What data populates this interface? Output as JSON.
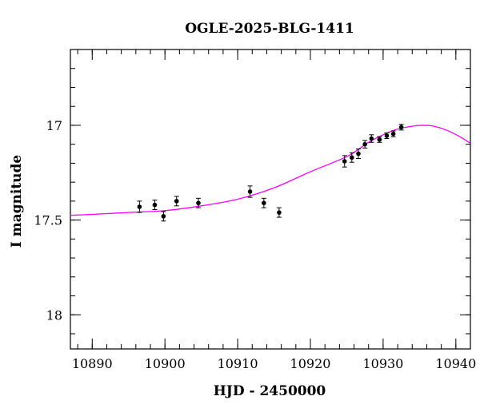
{
  "chart_data": {
    "type": "scatter",
    "title": "OGLE-2025-BLG-1411",
    "xlabel": "HJD - 2450000",
    "ylabel": "I magnitude",
    "xlim": [
      10887,
      10942
    ],
    "ylim": [
      18.18,
      16.6
    ],
    "y_inverted": true,
    "grid": false,
    "x_ticks": [
      10890,
      10900,
      10910,
      10920,
      10930,
      10940
    ],
    "y_ticks": [
      17,
      17.5,
      18
    ],
    "x_minor_step": 2,
    "y_minor_step": 0.1,
    "series": [
      {
        "kind": "points",
        "color": "#000000",
        "points": [
          {
            "x": 10896.5,
            "y": 17.43,
            "err": 0.03
          },
          {
            "x": 10898.6,
            "y": 17.42,
            "err": 0.025
          },
          {
            "x": 10899.8,
            "y": 17.48,
            "err": 0.025
          },
          {
            "x": 10901.6,
            "y": 17.4,
            "err": 0.025
          },
          {
            "x": 10904.6,
            "y": 17.41,
            "err": 0.025
          },
          {
            "x": 10911.7,
            "y": 17.35,
            "err": 0.03
          },
          {
            "x": 10913.6,
            "y": 17.41,
            "err": 0.025
          },
          {
            "x": 10915.7,
            "y": 17.46,
            "err": 0.025
          },
          {
            "x": 10924.7,
            "y": 17.19,
            "err": 0.03
          },
          {
            "x": 10925.7,
            "y": 17.17,
            "err": 0.025
          },
          {
            "x": 10926.6,
            "y": 17.15,
            "err": 0.025
          },
          {
            "x": 10927.5,
            "y": 17.1,
            "err": 0.02
          },
          {
            "x": 10928.4,
            "y": 17.07,
            "err": 0.02
          },
          {
            "x": 10929.5,
            "y": 17.075,
            "err": 0.015
          },
          {
            "x": 10930.5,
            "y": 17.055,
            "err": 0.015
          },
          {
            "x": 10931.4,
            "y": 17.045,
            "err": 0.015
          },
          {
            "x": 10932.5,
            "y": 17.01,
            "err": 0.015
          }
        ]
      },
      {
        "kind": "model",
        "color": "#ff00ff",
        "points": [
          {
            "x": 10887,
            "y": 17.475
          },
          {
            "x": 10890,
            "y": 17.47
          },
          {
            "x": 10895,
            "y": 17.46
          },
          {
            "x": 10900,
            "y": 17.45
          },
          {
            "x": 10905,
            "y": 17.425
          },
          {
            "x": 10910,
            "y": 17.39
          },
          {
            "x": 10915,
            "y": 17.33
          },
          {
            "x": 10920,
            "y": 17.245
          },
          {
            "x": 10925,
            "y": 17.165
          },
          {
            "x": 10928,
            "y": 17.09
          },
          {
            "x": 10930,
            "y": 17.05
          },
          {
            "x": 10932,
            "y": 17.02
          },
          {
            "x": 10934,
            "y": 17.005
          },
          {
            "x": 10935.5,
            "y": 17.0
          },
          {
            "x": 10937,
            "y": 17.005
          },
          {
            "x": 10939,
            "y": 17.03
          },
          {
            "x": 10941,
            "y": 17.07
          },
          {
            "x": 10942,
            "y": 17.095
          }
        ]
      }
    ]
  }
}
